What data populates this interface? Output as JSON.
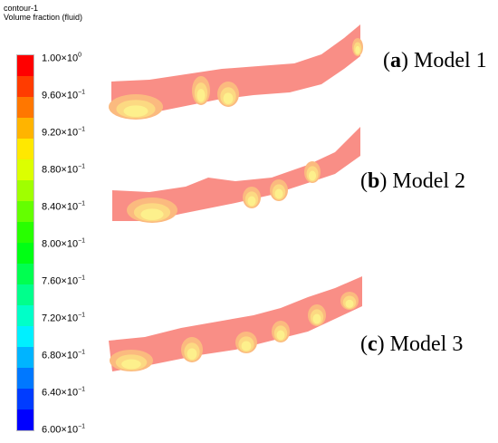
{
  "header": {
    "title": "contour-1",
    "subtitle": "Volume fraction (fluid)"
  },
  "legend": {
    "colors": [
      "#ff0000",
      "#ff3c00",
      "#ff7700",
      "#ffb400",
      "#ffe800",
      "#dcff00",
      "#a0ff00",
      "#64ff00",
      "#28ff00",
      "#00ff14",
      "#00ff50",
      "#00ff8c",
      "#00ffc8",
      "#00f0ff",
      "#00b4ff",
      "#0078ff",
      "#003cff",
      "#0000ff"
    ],
    "ticks": [
      {
        "mant": "1.00",
        "exp": "0"
      },
      {
        "mant": "9.60",
        "exp": "−1"
      },
      {
        "mant": "9.20",
        "exp": "−1"
      },
      {
        "mant": "8.80",
        "exp": "−1"
      },
      {
        "mant": "8.40",
        "exp": "−1"
      },
      {
        "mant": "8.00",
        "exp": "−1"
      },
      {
        "mant": "7.60",
        "exp": "−1"
      },
      {
        "mant": "7.20",
        "exp": "−1"
      },
      {
        "mant": "6.80",
        "exp": "−1"
      },
      {
        "mant": "6.40",
        "exp": "−1"
      },
      {
        "mant": "6.00",
        "exp": "−1"
      }
    ]
  },
  "models": [
    {
      "letter": "a",
      "name": "Model 1"
    },
    {
      "letter": "b",
      "name": "Model 2"
    },
    {
      "letter": "c",
      "name": "Model 3"
    }
  ],
  "colors": {
    "band_fill": "#f98e86",
    "patch_outer": "#fbba7f",
    "patch_mid": "#fcd982",
    "patch_inner": "#fdf08c"
  }
}
